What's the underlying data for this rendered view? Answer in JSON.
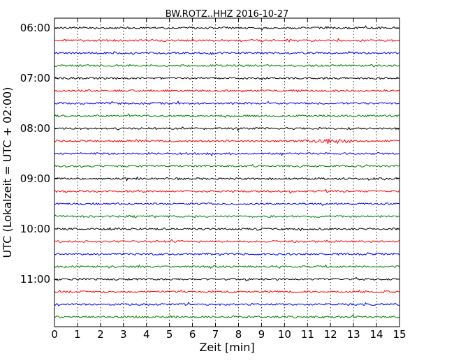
{
  "chart_data": {
    "type": "line",
    "title": "BW.ROTZ..HHZ 2016-10-27",
    "xlabel": "Zeit  [min]",
    "ylabel": "UTC (Lokalzeit = UTC + 02:00)",
    "xlim": [
      0,
      15
    ],
    "x_ticks": [
      "0",
      "1",
      "2",
      "3",
      "4",
      "5",
      "6",
      "7",
      "8",
      "9",
      "10",
      "11",
      "12",
      "13",
      "14",
      "15"
    ],
    "y_ticks": [
      "06:00",
      "07:00",
      "08:00",
      "09:00",
      "10:00",
      "11:00"
    ],
    "trace_interval_min": 15,
    "start_time": "06:00",
    "trace_count": 24,
    "trace_colors": [
      "#000000",
      "#ff0000",
      "#0000ff",
      "#008000"
    ],
    "grid": "vertical dotted lines at each minute",
    "notable_events": [
      {
        "trace_start": "08:15",
        "x_from": 10.8,
        "x_to": 13.2,
        "amplitude": "elevated"
      }
    ]
  }
}
